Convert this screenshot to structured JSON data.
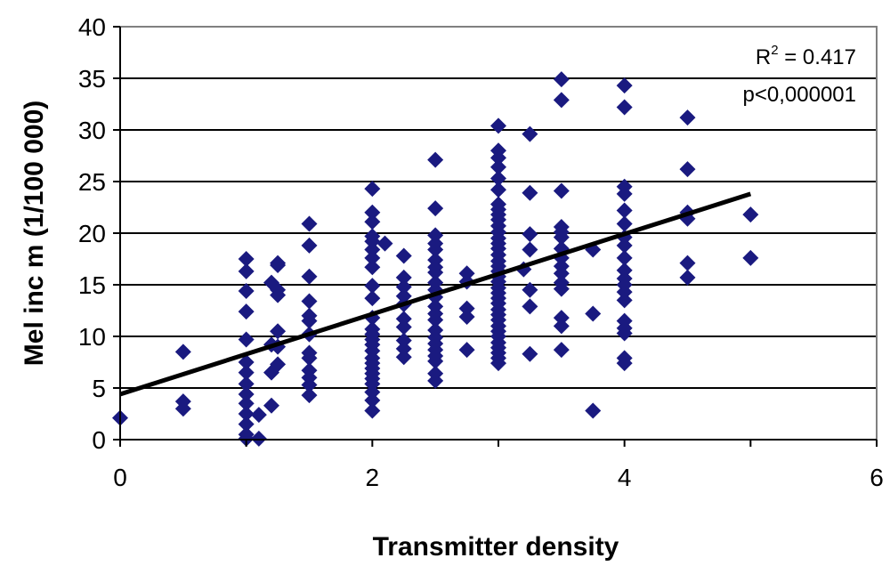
{
  "chart_data": {
    "type": "scatter",
    "title": "",
    "xlabel": "Transmitter density",
    "ylabel": "Mel inc m (1/100 000)",
    "xlim": [
      0,
      6
    ],
    "ylim": [
      0,
      40
    ],
    "x_ticks": [
      "0",
      "2",
      "4",
      "6"
    ],
    "y_ticks": [
      "0",
      "5",
      "10",
      "15",
      "20",
      "25",
      "30",
      "35",
      "40"
    ],
    "grid": "horizontal",
    "marker_color": "#1a1a80",
    "trendline": {
      "x": [
        0,
        5
      ],
      "y": [
        4.4,
        23.8
      ],
      "color": "#000000"
    },
    "annotations": {
      "r2_prefix": "R",
      "r2_sup": "2",
      "r2_value": " = 0.417",
      "p_value": "p<0,000001"
    },
    "points": [
      [
        0,
        2.1
      ],
      [
        0.5,
        8.5
      ],
      [
        0.5,
        3.7
      ],
      [
        0.5,
        3.0
      ],
      [
        1.0,
        17.5
      ],
      [
        1.0,
        16.3
      ],
      [
        1.0,
        14.4
      ],
      [
        1.0,
        12.4
      ],
      [
        1.0,
        9.7
      ],
      [
        1.0,
        7.5
      ],
      [
        1.0,
        6.5
      ],
      [
        1.0,
        5.4
      ],
      [
        1.0,
        4.4
      ],
      [
        1.0,
        3.5
      ],
      [
        1.0,
        2.5
      ],
      [
        1.0,
        1.5
      ],
      [
        1.0,
        0.5
      ],
      [
        1.0,
        0.1
      ],
      [
        1.1,
        2.4
      ],
      [
        1.1,
        0.1
      ],
      [
        1.2,
        15.2
      ],
      [
        1.2,
        9.2
      ],
      [
        1.2,
        6.5
      ],
      [
        1.2,
        3.3
      ],
      [
        1.25,
        17.1
      ],
      [
        1.25,
        16.9
      ],
      [
        1.25,
        14.5
      ],
      [
        1.25,
        14.0
      ],
      [
        1.25,
        10.5
      ],
      [
        1.25,
        9.0
      ],
      [
        1.25,
        7.3
      ],
      [
        1.5,
        20.9
      ],
      [
        1.5,
        18.8
      ],
      [
        1.5,
        15.8
      ],
      [
        1.5,
        13.4
      ],
      [
        1.5,
        12.0
      ],
      [
        1.5,
        11.5
      ],
      [
        1.5,
        10.2
      ],
      [
        1.5,
        8.4
      ],
      [
        1.5,
        7.9
      ],
      [
        1.5,
        6.7
      ],
      [
        1.5,
        6.0
      ],
      [
        1.5,
        5.3
      ],
      [
        1.5,
        4.3
      ],
      [
        2.0,
        24.3
      ],
      [
        2.0,
        22.0
      ],
      [
        2.0,
        21.1
      ],
      [
        2.0,
        19.7
      ],
      [
        2.0,
        19.2
      ],
      [
        2.0,
        18.4
      ],
      [
        2.0,
        17.6
      ],
      [
        2.0,
        16.7
      ],
      [
        2.0,
        14.9
      ],
      [
        2.0,
        13.7
      ],
      [
        2.0,
        11.8
      ],
      [
        2.0,
        10.7
      ],
      [
        2.0,
        10.2
      ],
      [
        2.0,
        9.7
      ],
      [
        2.0,
        9.2
      ],
      [
        2.0,
        8.6
      ],
      [
        2.0,
        7.9
      ],
      [
        2.0,
        7.4
      ],
      [
        2.0,
        6.9
      ],
      [
        2.0,
        6.4
      ],
      [
        2.0,
        5.9
      ],
      [
        2.0,
        5.4
      ],
      [
        2.0,
        4.6
      ],
      [
        2.0,
        3.8
      ],
      [
        2.0,
        2.8
      ],
      [
        2.1,
        19.0
      ],
      [
        2.25,
        17.8
      ],
      [
        2.25,
        15.7
      ],
      [
        2.25,
        14.8
      ],
      [
        2.25,
        13.9
      ],
      [
        2.25,
        13.1
      ],
      [
        2.25,
        11.7
      ],
      [
        2.25,
        10.9
      ],
      [
        2.25,
        9.6
      ],
      [
        2.25,
        8.8
      ],
      [
        2.25,
        8.0
      ],
      [
        2.5,
        27.1
      ],
      [
        2.5,
        22.4
      ],
      [
        2.5,
        19.8
      ],
      [
        2.5,
        19.0
      ],
      [
        2.5,
        18.4
      ],
      [
        2.5,
        17.4
      ],
      [
        2.5,
        16.7
      ],
      [
        2.5,
        16.2
      ],
      [
        2.5,
        15.2
      ],
      [
        2.5,
        14.5
      ],
      [
        2.5,
        13.8
      ],
      [
        2.5,
        12.9
      ],
      [
        2.5,
        12.2
      ],
      [
        2.5,
        11.6
      ],
      [
        2.5,
        10.6
      ],
      [
        2.5,
        9.9
      ],
      [
        2.5,
        9.3
      ],
      [
        2.5,
        8.7
      ],
      [
        2.5,
        8.1
      ],
      [
        2.5,
        7.6
      ],
      [
        2.5,
        6.4
      ],
      [
        2.5,
        5.7
      ],
      [
        2.75,
        16.1
      ],
      [
        2.75,
        15.3
      ],
      [
        2.75,
        12.7
      ],
      [
        2.75,
        11.9
      ],
      [
        2.75,
        8.7
      ],
      [
        3.0,
        30.4
      ],
      [
        3.0,
        28.0
      ],
      [
        3.0,
        27.3
      ],
      [
        3.0,
        26.4
      ],
      [
        3.0,
        25.3
      ],
      [
        3.0,
        24.2
      ],
      [
        3.0,
        22.8
      ],
      [
        3.0,
        22.3
      ],
      [
        3.0,
        21.8
      ],
      [
        3.0,
        21.3
      ],
      [
        3.0,
        20.7
      ],
      [
        3.0,
        20.1
      ],
      [
        3.0,
        19.5
      ],
      [
        3.0,
        19.0
      ],
      [
        3.0,
        18.5
      ],
      [
        3.0,
        17.9
      ],
      [
        3.0,
        17.3
      ],
      [
        3.0,
        16.8
      ],
      [
        3.0,
        16.3
      ],
      [
        3.0,
        15.8
      ],
      [
        3.0,
        15.3
      ],
      [
        3.0,
        14.7
      ],
      [
        3.0,
        14.2
      ],
      [
        3.0,
        13.7
      ],
      [
        3.0,
        13.2
      ],
      [
        3.0,
        12.6
      ],
      [
        3.0,
        12.1
      ],
      [
        3.0,
        11.6
      ],
      [
        3.0,
        11.0
      ],
      [
        3.0,
        10.5
      ],
      [
        3.0,
        10.0
      ],
      [
        3.0,
        9.4
      ],
      [
        3.0,
        8.9
      ],
      [
        3.0,
        8.4
      ],
      [
        3.0,
        7.9
      ],
      [
        3.0,
        7.4
      ],
      [
        3.2,
        16.5
      ],
      [
        3.25,
        29.6
      ],
      [
        3.25,
        23.9
      ],
      [
        3.25,
        19.9
      ],
      [
        3.25,
        18.4
      ],
      [
        3.25,
        14.5
      ],
      [
        3.25,
        12.9
      ],
      [
        3.25,
        8.3
      ],
      [
        3.5,
        34.9
      ],
      [
        3.5,
        32.9
      ],
      [
        3.5,
        24.1
      ],
      [
        3.5,
        20.6
      ],
      [
        3.5,
        20.1
      ],
      [
        3.5,
        19.6
      ],
      [
        3.5,
        18.5
      ],
      [
        3.5,
        17.6
      ],
      [
        3.5,
        16.8
      ],
      [
        3.5,
        16.1
      ],
      [
        3.5,
        15.2
      ],
      [
        3.5,
        14.6
      ],
      [
        3.5,
        11.8
      ],
      [
        3.5,
        11.0
      ],
      [
        3.5,
        8.7
      ],
      [
        3.75,
        18.4
      ],
      [
        3.75,
        12.2
      ],
      [
        3.75,
        2.8
      ],
      [
        4.0,
        34.3
      ],
      [
        4.0,
        32.2
      ],
      [
        4.0,
        24.5
      ],
      [
        4.0,
        23.8
      ],
      [
        4.0,
        22.2
      ],
      [
        4.0,
        20.9
      ],
      [
        4.0,
        19.6
      ],
      [
        4.0,
        18.8
      ],
      [
        4.0,
        17.6
      ],
      [
        4.0,
        16.4
      ],
      [
        4.0,
        15.6
      ],
      [
        4.0,
        15.0
      ],
      [
        4.0,
        14.3
      ],
      [
        4.0,
        13.5
      ],
      [
        4.0,
        11.5
      ],
      [
        4.0,
        10.8
      ],
      [
        4.0,
        10.3
      ],
      [
        4.0,
        7.9
      ],
      [
        4.0,
        7.4
      ],
      [
        4.5,
        31.2
      ],
      [
        4.5,
        26.2
      ],
      [
        4.5,
        22.0
      ],
      [
        4.5,
        21.4
      ],
      [
        4.5,
        17.1
      ],
      [
        4.5,
        15.7
      ],
      [
        5.0,
        21.8
      ],
      [
        5.0,
        17.6
      ]
    ]
  }
}
